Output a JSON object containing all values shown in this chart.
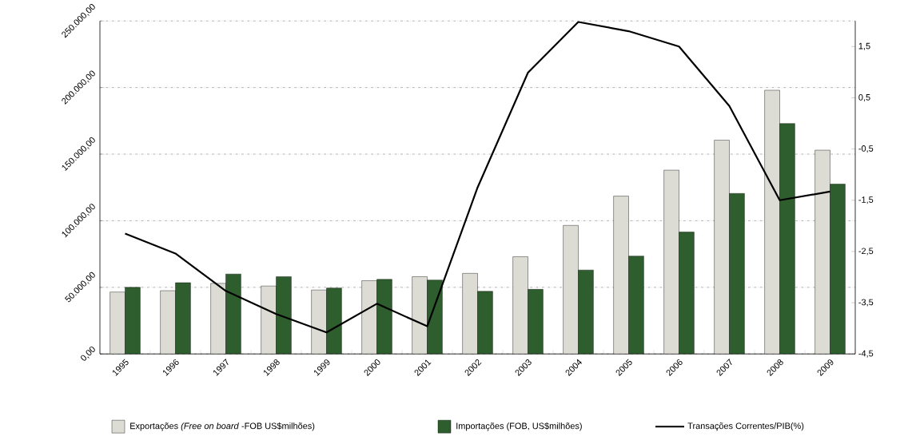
{
  "chart_data": {
    "type": "bar",
    "categories": [
      "1995",
      "1996",
      "1997",
      "1998",
      "1999",
      "2000",
      "2001",
      "2002",
      "2003",
      "2004",
      "2005",
      "2006",
      "2007",
      "2008",
      "2009"
    ],
    "series": [
      {
        "name": "Exportações *(Free on board* -FOB US$milhões)",
        "color": "#dcdcd4",
        "values": [
          46500,
          47500,
          53000,
          51000,
          48000,
          55000,
          58000,
          60500,
          73000,
          96500,
          118500,
          138000,
          160500,
          198000,
          153000
        ]
      },
      {
        "name": "Importações (FOB, US$milhões)",
        "color": "#2e5e2e",
        "values": [
          50000,
          53500,
          60000,
          58000,
          49500,
          56000,
          55500,
          47000,
          48500,
          63000,
          73500,
          91500,
          120500,
          173000,
          127500
        ]
      },
      {
        "name": "Transações Correntes/PIB(%)",
        "color": "#000000",
        "type": "line",
        "axis": "y2",
        "values": [
          -2.15,
          -2.54,
          -3.27,
          -3.72,
          -4.08,
          -3.52,
          -3.96,
          -1.25,
          0.99,
          1.98,
          1.8,
          1.5,
          0.34,
          -1.5,
          -1.33
        ]
      }
    ],
    "ylim": [
      0,
      250000
    ],
    "yticks": [
      {
        "value": 0,
        "label": "0,00"
      },
      {
        "value": 50000,
        "label": "50.000,00"
      },
      {
        "value": 100000,
        "label": "100.000,00"
      },
      {
        "value": 150000,
        "label": "150.000,00"
      },
      {
        "value": 200000,
        "label": "200.000,00"
      },
      {
        "value": 250000,
        "label": "250.000,00"
      }
    ],
    "y2lim": [
      -4.5,
      2.0
    ],
    "y2ticks": [
      {
        "value": -4.5,
        "label": "-4,5"
      },
      {
        "value": -3.5,
        "label": "-3,5"
      },
      {
        "value": -2.5,
        "label": "-2,5"
      },
      {
        "value": -1.5,
        "label": "-1,5"
      },
      {
        "value": -0.5,
        "label": "-0,5"
      },
      {
        "value": 0.5,
        "label": "0,5"
      },
      {
        "value": 1.5,
        "label": "1,5"
      }
    ],
    "grid": "y",
    "legend": "bottom"
  }
}
